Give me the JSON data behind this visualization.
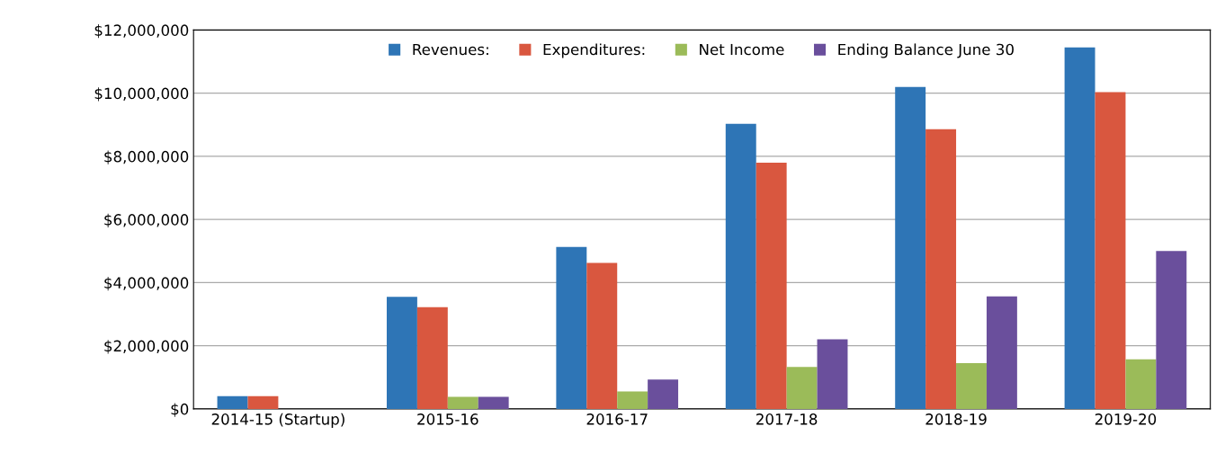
{
  "chart_data": {
    "type": "bar",
    "categories": [
      "2014-15 (Startup)",
      "2015-16",
      "2016-17",
      "2017-18",
      "2018-19",
      "2019-20"
    ],
    "series": [
      {
        "name": "Revenues:",
        "color": "#2e75b6",
        "values": [
          400000,
          3550000,
          5130000,
          9030000,
          10200000,
          11450000
        ]
      },
      {
        "name": "Expenditures:",
        "color": "#d9573f",
        "values": [
          400000,
          3220000,
          4620000,
          7800000,
          8860000,
          10030000
        ]
      },
      {
        "name": "Net Income",
        "color": "#9bbb59",
        "values": [
          0,
          380000,
          550000,
          1330000,
          1450000,
          1570000
        ]
      },
      {
        "name": "Ending Balance June 30",
        "color": "#6a4f9c",
        "values": [
          0,
          380000,
          930000,
          2200000,
          3560000,
          5000000
        ]
      }
    ],
    "ylim": [
      0,
      12000000
    ],
    "yticks": [
      {
        "value": 0,
        "label": "$0"
      },
      {
        "value": 2000000,
        "label": "$2,000,000"
      },
      {
        "value": 4000000,
        "label": "$4,000,000"
      },
      {
        "value": 6000000,
        "label": "$6,000,000"
      },
      {
        "value": 8000000,
        "label": "$8,000,000"
      },
      {
        "value": 10000000,
        "label": "$10,000,000"
      },
      {
        "value": 12000000,
        "label": "$12,000,000"
      }
    ],
    "grid": "y",
    "legend": "top"
  }
}
